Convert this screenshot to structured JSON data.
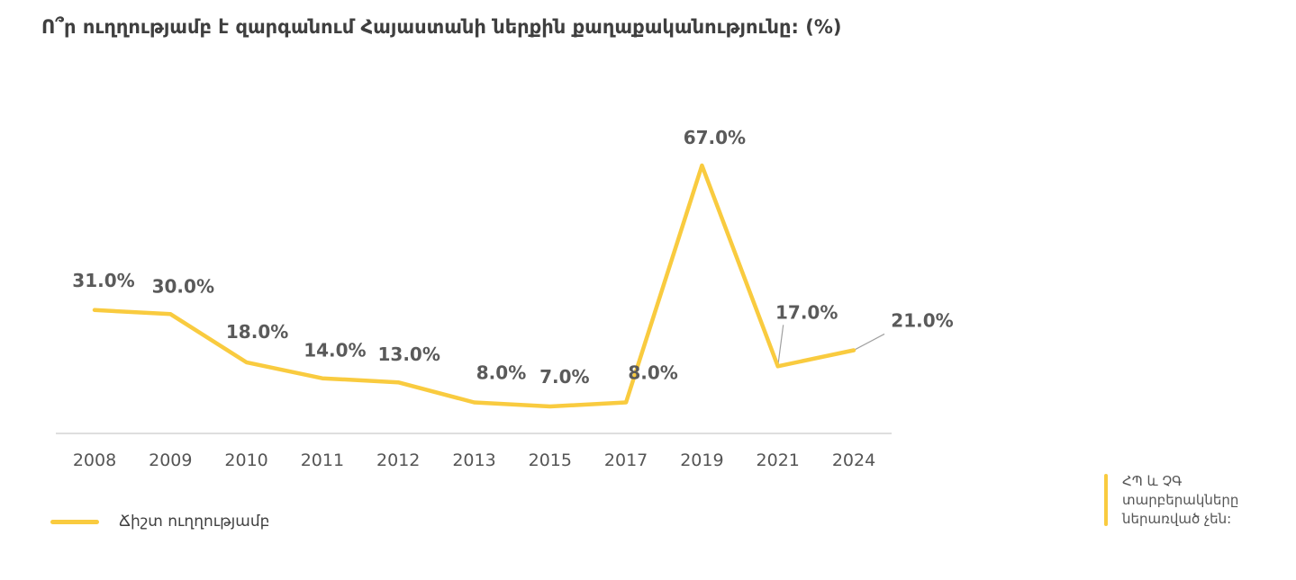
{
  "title": "Ո՞ր ուղղությամբ է զարգանում Հայաստանի ներքին քաղաքականությունը: (%)",
  "legend": {
    "label": "Ճիշտ ուղղությամբ"
  },
  "note": {
    "text": "ՀՊ և ՉԳ տարբերակները ներառված չեն:"
  },
  "colors": {
    "line": "#F9CB3F",
    "axis": "#d4d4d4",
    "label": "#5a5a5a",
    "tick": "#555555",
    "leader": "#a0a0a0"
  },
  "chart_data": {
    "type": "line",
    "title": "Ո՞ր ուղղությամբ է զարգանում Հայաստանի ներքին քաղաքականությունը: (%)",
    "xlabel": "",
    "ylabel": "",
    "categories": [
      "2008",
      "2009",
      "2010",
      "2011",
      "2012",
      "2013",
      "2015",
      "2017",
      "2019",
      "2021",
      "2024"
    ],
    "series": [
      {
        "name": "Ճիշտ ուղղությամբ",
        "values": [
          31.0,
          30.0,
          18.0,
          14.0,
          13.0,
          8.0,
          7.0,
          8.0,
          67.0,
          17.0,
          21.0
        ],
        "labels": [
          "31.0%",
          "30.0%",
          "18.0%",
          "14.0%",
          "13.0%",
          "8.0%",
          "7.0%",
          "8.0%",
          "67.0%",
          "17.0%",
          "21.0%"
        ]
      }
    ],
    "ylim": [
      0,
      67
    ],
    "grid": false,
    "legend_position": "bottom-left"
  }
}
